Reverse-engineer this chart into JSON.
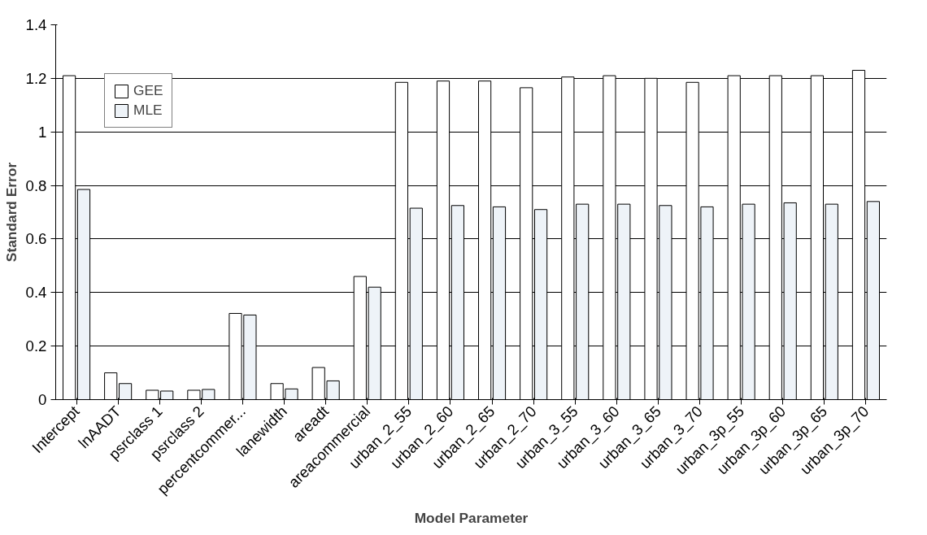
{
  "chart_data": {
    "type": "bar",
    "xlabel": "Model Parameter",
    "ylabel": "Standard Error",
    "categories": [
      "Intercept",
      "lnAADT",
      "psrclass 1",
      "psrclass 2",
      "percentcommer...",
      "lanewidth",
      "areadt",
      "areacommercial",
      "urban_2_55",
      "urban_2_60",
      "urban_2_65",
      "urban_2_70",
      "urban_3_55",
      "urban_3_60",
      "urban_3_65",
      "urban_3_70",
      "urban_3p_55",
      "urban_3p_60",
      "urban_3p_65",
      "urban_3p_70"
    ],
    "series": [
      {
        "name": "GEE",
        "color": "#ffffff",
        "values": [
          1.21,
          0.1,
          0.035,
          0.035,
          0.322,
          0.06,
          0.12,
          0.46,
          1.185,
          1.19,
          1.19,
          1.165,
          1.205,
          1.21,
          1.2,
          1.185,
          1.21,
          1.21,
          1.21,
          1.23
        ]
      },
      {
        "name": "MLE",
        "color": "#eef3f8",
        "values": [
          0.785,
          0.06,
          0.032,
          0.038,
          0.316,
          0.04,
          0.07,
          0.42,
          0.715,
          0.725,
          0.72,
          0.71,
          0.73,
          0.73,
          0.725,
          0.72,
          0.73,
          0.735,
          0.73,
          0.74
        ]
      }
    ],
    "ylim": [
      0,
      1.4
    ],
    "yticks": [
      0,
      {
        "value": 0.2,
        "label": "0.2"
      },
      {
        "value": 0.4,
        "label": "0.4"
      },
      {
        "value": 0.6,
        "label": "0.6"
      },
      {
        "value": 0.8,
        "label": "0.8"
      },
      1,
      {
        "value": 1.2,
        "label": "1.2"
      },
      {
        "value": 1.4,
        "label": "1.4"
      }
    ],
    "grid": "y",
    "legend": "top left"
  }
}
